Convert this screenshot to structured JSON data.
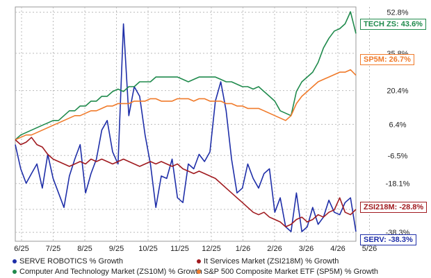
{
  "chart_data": {
    "type": "line",
    "x_labels": [
      "6/25",
      "7/25",
      "8/25",
      "9/25",
      "10/25",
      "11/25",
      "12/25",
      "1/26",
      "2/26",
      "3/26",
      "4/26",
      "5/26"
    ],
    "y_ticks": [
      "52.8%",
      "35.8%",
      "20.4%",
      "6.4%",
      "-6.5%",
      "-18.1%",
      "-28.8%",
      "-38.3%"
    ],
    "y_tick_values": [
      52.8,
      35.8,
      20.4,
      6.4,
      -6.5,
      -18.1,
      -28.8,
      -38.3
    ],
    "ylim": [
      -42,
      55
    ],
    "grid": true,
    "legend_position": "bottom",
    "series": [
      {
        "name": "SERVE ROBOTICS % Growth",
        "color": "#1e2ea8",
        "end_label": "SERV: -38.3%",
        "values": [
          -2,
          -12,
          -18,
          -14,
          -10,
          -20,
          -6,
          -16,
          -22,
          -28,
          -15,
          -8,
          -2,
          -22,
          -14,
          -8,
          4,
          8,
          -5,
          -10,
          48,
          10,
          22,
          18,
          2,
          -10,
          -28,
          -15,
          -16,
          -8,
          -24,
          -26,
          -10,
          -12,
          -6,
          -9,
          -5,
          16,
          24,
          12,
          -8,
          -22,
          -20,
          -10,
          -16,
          -20,
          -14,
          -12,
          -30,
          -24,
          -36,
          -38,
          -22,
          -38,
          -36,
          -28,
          -35,
          -32,
          -25,
          -30,
          -31,
          -26,
          -24,
          -38
        ]
      },
      {
        "name": "Computer And Technology Market (ZS10M) % Growth",
        "color": "#1f8a4c",
        "end_label": "TECH ZS: 43.6%",
        "values": [
          0,
          2,
          3,
          4,
          5,
          6,
          7,
          8,
          8,
          10,
          12,
          12,
          14,
          14,
          16,
          16,
          18,
          18,
          20,
          21,
          20,
          22,
          22,
          24,
          24,
          24,
          26,
          26,
          26,
          26,
          26,
          25,
          24,
          25,
          26,
          26,
          26,
          26,
          25,
          24,
          24,
          23,
          22,
          22,
          21,
          22,
          20,
          18,
          16,
          12,
          11,
          10,
          20,
          24,
          26,
          28,
          32,
          38,
          42,
          45,
          46,
          48,
          53,
          44
        ]
      },
      {
        "name": "S&P 500 Composite Market ETF (SP5M) % Growth",
        "color": "#f07a2a",
        "end_label": "SP5M: 26.7%",
        "values": [
          0,
          1,
          2,
          2,
          3,
          4,
          5,
          6,
          7,
          8,
          9,
          10,
          10,
          11,
          12,
          12,
          13,
          14,
          14,
          15,
          15,
          15,
          16,
          16,
          16,
          17,
          17,
          16,
          16,
          16,
          17,
          17,
          17,
          16,
          17,
          17,
          16,
          16,
          16,
          15,
          15,
          14,
          14,
          13,
          13,
          13,
          12,
          11,
          10,
          9,
          8,
          10,
          15,
          18,
          20,
          22,
          24,
          25,
          26,
          27,
          28,
          28,
          29,
          26.7
        ]
      },
      {
        "name": "It Services Market (ZSI218M) % Growth",
        "color": "#a01a1f",
        "end_label": "ZSI218M: -28.8%",
        "values": [
          0,
          -2,
          -1,
          1,
          -2,
          -3,
          -6,
          -8,
          -9,
          -10,
          -11,
          -10,
          -9,
          -10,
          -8,
          -9,
          -8,
          -9,
          -10,
          -9,
          -8,
          -9,
          -10,
          -11,
          -10,
          -9,
          -10,
          -9,
          -10,
          -11,
          -10,
          -12,
          -13,
          -14,
          -13,
          -14,
          -15,
          -16,
          -18,
          -20,
          -22,
          -24,
          -26,
          -28,
          -30,
          -31,
          -30,
          -32,
          -33,
          -34,
          -36,
          -35,
          -33,
          -32,
          -34,
          -33,
          -31,
          -32,
          -30,
          -29,
          -24,
          -30,
          -31,
          -28.8
        ]
      }
    ]
  },
  "legend": [
    {
      "label": "SERVE ROBOTICS % Growth",
      "color": "#1e2ea8"
    },
    {
      "label": "It Services Market (ZSI218M) % Growth",
      "color": "#a01a1f"
    },
    {
      "label": "Computer And Technology Market (ZS10M) % Growth",
      "color": "#1f8a4c"
    },
    {
      "label": "S&P 500 Composite Market ETF (SP5M) % Growth",
      "color": "#f07a2a"
    }
  ]
}
